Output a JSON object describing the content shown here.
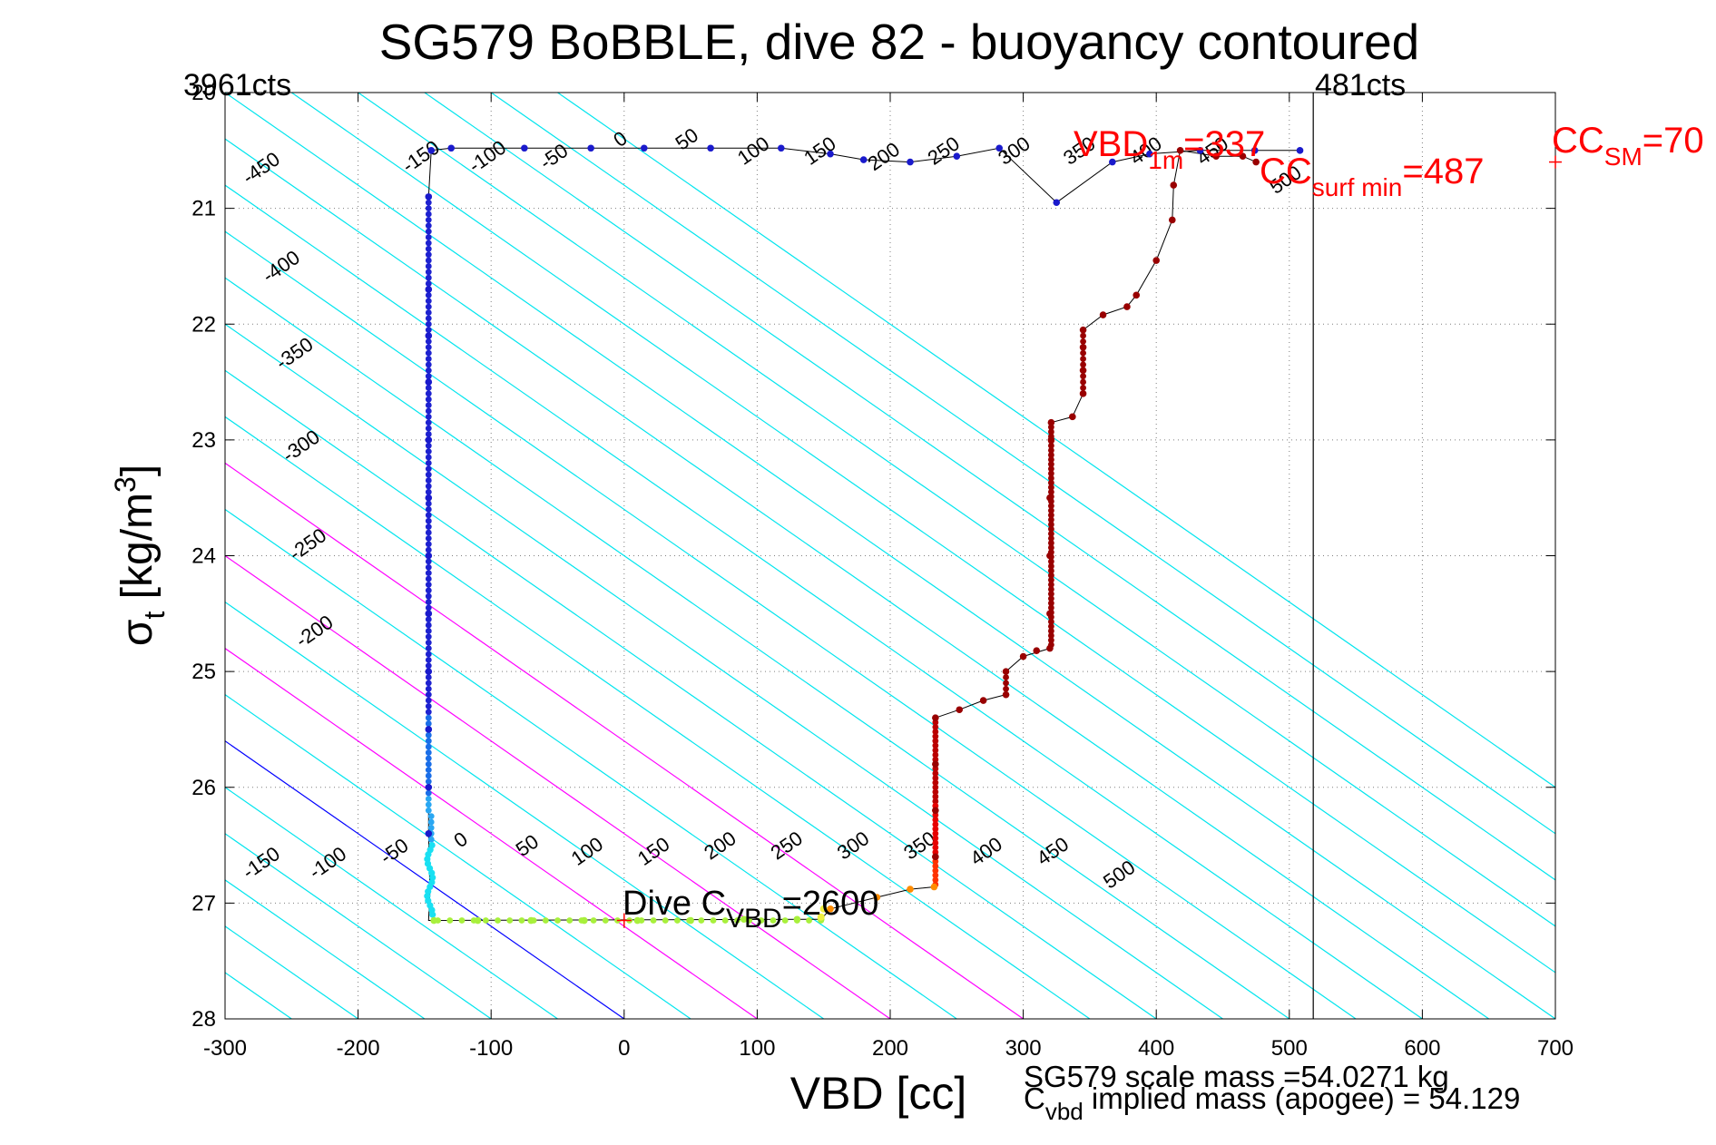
{
  "chart_data": {
    "type": "scatter",
    "title": "SG579 BoBBLE, dive 82 - buoyancy contoured",
    "xlabel": "VBD [cc]",
    "ylabel_main": "σ",
    "ylabel_sub": "t",
    "ylabel_unit": " [kg/m",
    "ylabel_sup": "3",
    "ylabel_close": "]",
    "xlim": [
      -300,
      700
    ],
    "ylim": [
      20,
      28
    ],
    "y_reversed": true,
    "grid": true,
    "xticks": [
      -300,
      -200,
      -100,
      0,
      100,
      200,
      300,
      400,
      500,
      600,
      700
    ],
    "yticks": [
      20,
      21,
      22,
      23,
      24,
      25,
      26,
      27,
      28
    ],
    "xtick_labels": [
      "-300",
      "-200",
      "-100",
      "0",
      "100",
      "200",
      "300",
      "400",
      "500",
      "600",
      "700"
    ],
    "ytick_labels": [
      "20",
      "21",
      "22",
      "23",
      "24",
      "25",
      "26",
      "27",
      "28"
    ],
    "contour_slope_cc_per_sigma": 125,
    "contour_offsets": [
      -450,
      -400,
      -350,
      -300,
      -250,
      -200,
      -150,
      -100,
      -50,
      0,
      50,
      100,
      150,
      200,
      250,
      300,
      350,
      400,
      450,
      500,
      550,
      600,
      650,
      700,
      750,
      800,
      850,
      900,
      950
    ],
    "contour_colors": {
      "default": "#00e5ee",
      "zero": "#0000ff",
      "magenta": "#ff00ff"
    },
    "magenta_offsets": [
      100,
      200,
      300
    ],
    "contour_labels_top": [
      {
        "text": "-450",
        "x": -270,
        "y": 20.7
      },
      {
        "text": "-400",
        "x": -255,
        "y": 21.55
      },
      {
        "text": "-350",
        "x": -245,
        "y": 22.3
      },
      {
        "text": "-300",
        "x": -240,
        "y": 23.1
      },
      {
        "text": "-250",
        "x": -235,
        "y": 23.95
      },
      {
        "text": "-200",
        "x": -230,
        "y": 24.7
      },
      {
        "text": "-150",
        "x": -150,
        "y": 20.6
      },
      {
        "text": "-100",
        "x": -100,
        "y": 20.6
      },
      {
        "text": "-50",
        "x": -50,
        "y": 20.6
      },
      {
        "text": "0",
        "x": 0,
        "y": 20.45
      },
      {
        "text": "50",
        "x": 50,
        "y": 20.45
      },
      {
        "text": "100",
        "x": 100,
        "y": 20.55
      },
      {
        "text": "150",
        "x": 150,
        "y": 20.55
      },
      {
        "text": "200",
        "x": 198,
        "y": 20.6
      },
      {
        "text": "250",
        "x": 243,
        "y": 20.55
      },
      {
        "text": "300",
        "x": 296,
        "y": 20.55
      },
      {
        "text": "350",
        "x": 345,
        "y": 20.55
      },
      {
        "text": "400",
        "x": 395,
        "y": 20.55
      },
      {
        "text": "450",
        "x": 445,
        "y": 20.55
      },
      {
        "text": "500",
        "x": 500,
        "y": 20.8
      }
    ],
    "contour_labels_bottom": [
      {
        "text": "-150",
        "x": -270,
        "y": 26.7
      },
      {
        "text": "-100",
        "x": -220,
        "y": 26.7
      },
      {
        "text": "-50",
        "x": -170,
        "y": 26.6
      },
      {
        "text": "0",
        "x": -120,
        "y": 26.5
      },
      {
        "text": "50",
        "x": -70,
        "y": 26.55
      },
      {
        "text": "100",
        "x": -25,
        "y": 26.6
      },
      {
        "text": "150",
        "x": 25,
        "y": 26.6
      },
      {
        "text": "200",
        "x": 75,
        "y": 26.55
      },
      {
        "text": "250",
        "x": 125,
        "y": 26.55
      },
      {
        "text": "300",
        "x": 175,
        "y": 26.55
      },
      {
        "text": "350",
        "x": 225,
        "y": 26.55
      },
      {
        "text": "400",
        "x": 275,
        "y": 26.6
      },
      {
        "text": "450",
        "x": 325,
        "y": 26.6
      },
      {
        "text": "500",
        "x": 375,
        "y": 26.8
      }
    ],
    "series": [
      {
        "name": "descent",
        "color": "#1a1acc",
        "points": [
          [
            -145,
            20.5
          ],
          [
            -130,
            20.48
          ],
          [
            -75,
            20.48
          ],
          [
            -25,
            20.48
          ],
          [
            15,
            20.48
          ],
          [
            65,
            20.48
          ],
          [
            118,
            20.48
          ],
          [
            155,
            20.53
          ],
          [
            180,
            20.58
          ],
          [
            215,
            20.6
          ],
          [
            250,
            20.55
          ],
          [
            282,
            20.48
          ],
          [
            325,
            20.95
          ],
          [
            367,
            20.6
          ],
          [
            395,
            20.53
          ],
          [
            433,
            20.5
          ],
          [
            474,
            20.5
          ],
          [
            508,
            20.5
          ],
          [
            -147,
            20.9
          ],
          [
            -147,
            21.7
          ],
          [
            -147,
            22.1
          ],
          [
            -147,
            22.5
          ],
          [
            -147,
            23.0
          ],
          [
            -147,
            23.5
          ],
          [
            -147,
            24.0
          ],
          [
            -147,
            24.5
          ],
          [
            -147,
            25.0
          ],
          [
            -147,
            25.5
          ],
          [
            -147,
            26.0
          ],
          [
            -147,
            26.4
          ]
        ]
      },
      {
        "name": "bottom",
        "color": "#a8f03c",
        "points": [
          [
            -143,
            27.15
          ],
          [
            -110,
            27.15
          ],
          [
            -70,
            27.15
          ],
          [
            -30,
            27.15
          ],
          [
            10,
            27.15
          ],
          [
            50,
            27.15
          ],
          [
            90,
            27.14
          ],
          [
            130,
            27.14
          ],
          [
            148,
            27.14
          ]
        ]
      },
      {
        "name": "turn",
        "color": "#ff8c00",
        "points": [
          [
            155,
            27.05
          ],
          [
            190,
            26.95
          ],
          [
            215,
            26.88
          ],
          [
            233,
            26.86
          ]
        ]
      },
      {
        "name": "ascent",
        "color": "#990000",
        "points": [
          [
            234,
            26.6
          ],
          [
            234,
            26.2
          ],
          [
            234,
            25.8
          ],
          [
            234,
            25.4
          ],
          [
            252,
            25.33
          ],
          [
            270,
            25.25
          ],
          [
            287,
            25.2
          ],
          [
            287,
            25.0
          ],
          [
            300,
            24.87
          ],
          [
            310,
            24.82
          ],
          [
            320,
            24.8
          ],
          [
            320,
            24.5
          ],
          [
            320,
            24.0
          ],
          [
            320,
            23.5
          ],
          [
            321,
            23.0
          ],
          [
            321,
            22.85
          ],
          [
            337,
            22.8
          ],
          [
            345,
            22.6
          ],
          [
            345,
            22.4
          ],
          [
            345,
            22.2
          ],
          [
            345,
            22.05
          ],
          [
            360,
            21.92
          ],
          [
            378,
            21.85
          ],
          [
            385,
            21.75
          ],
          [
            400,
            21.45
          ],
          [
            412,
            21.1
          ],
          [
            413,
            20.8
          ],
          [
            418,
            20.5
          ],
          [
            445,
            20.55
          ],
          [
            465,
            20.55
          ],
          [
            475,
            20.6
          ]
        ]
      }
    ],
    "path_segments": [
      [
        [
          -145,
          20.5
        ],
        [
          -130,
          20.48
        ],
        [
          -75,
          20.48
        ],
        [
          -25,
          20.48
        ],
        [
          15,
          20.48
        ],
        [
          65,
          20.48
        ],
        [
          118,
          20.48
        ],
        [
          155,
          20.53
        ],
        [
          180,
          20.58
        ],
        [
          215,
          20.6
        ],
        [
          250,
          20.55
        ],
        [
          282,
          20.48
        ],
        [
          325,
          20.95
        ],
        [
          367,
          20.6
        ],
        [
          395,
          20.53
        ],
        [
          433,
          20.5
        ],
        [
          474,
          20.5
        ],
        [
          508,
          20.5
        ]
      ],
      [
        [
          -145,
          20.5
        ],
        [
          -147,
          20.9
        ],
        [
          -147,
          26.4
        ],
        [
          -146,
          26.9
        ],
        [
          -147,
          27.15
        ],
        [
          148,
          27.14
        ],
        [
          155,
          27.05
        ],
        [
          190,
          26.95
        ],
        [
          215,
          26.88
        ],
        [
          233,
          26.86
        ],
        [
          234,
          25.4
        ],
        [
          252,
          25.33
        ],
        [
          270,
          25.25
        ],
        [
          287,
          25.2
        ],
        [
          287,
          25.0
        ],
        [
          300,
          24.87
        ],
        [
          320,
          24.8
        ],
        [
          321,
          22.85
        ],
        [
          337,
          22.8
        ],
        [
          345,
          22.6
        ],
        [
          345,
          22.05
        ],
        [
          360,
          21.92
        ],
        [
          378,
          21.85
        ],
        [
          385,
          21.75
        ],
        [
          400,
          21.45
        ],
        [
          412,
          21.1
        ],
        [
          413,
          20.8
        ],
        [
          418,
          20.5
        ],
        [
          445,
          20.55
        ],
        [
          465,
          20.55
        ],
        [
          475,
          20.6
        ]
      ]
    ],
    "vertical_line_x": 518,
    "annotations": {
      "left_counts": "3961cts",
      "right_counts": "481cts",
      "dive_c_vbd_main": "Dive C",
      "dive_c_vbd_sub": "VBD",
      "dive_c_vbd_value": "=2600",
      "dive_c_vbd_marker": [
        0,
        27.15
      ],
      "vbd_1m_main": "VBD",
      "vbd_1m_sub": "1m",
      "vbd_1m_value": "=337",
      "cc_surf_min_main": "CC",
      "cc_surf_min_sub": "surf min",
      "cc_surf_min_value": "=487",
      "cc_sm_main": "CC",
      "cc_sm_sub": "SM",
      "cc_sm_value": "=70",
      "cc_sm_marker": [
        700,
        20.6
      ],
      "scale_mass": "SG579 scale mass =54.0271 kg",
      "implied_mass_main": "C",
      "implied_mass_sub": "vbd",
      "implied_mass_value": " implied mass (apogee) = 54.129"
    },
    "colors": {
      "axis": "#000000",
      "grid": "#7f7f7f",
      "red_annotation": "#ff0000",
      "path": "#000000"
    }
  }
}
